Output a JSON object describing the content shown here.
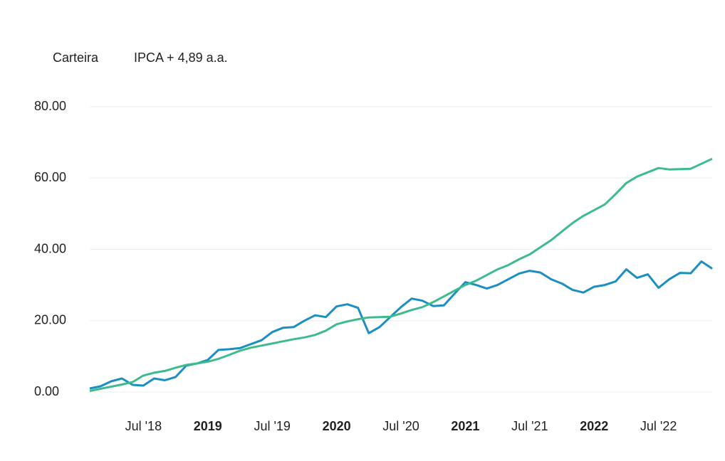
{
  "chart_data": {
    "type": "line",
    "x": [
      "2018-02",
      "2018-03",
      "2018-04",
      "2018-05",
      "2018-06",
      "2018-07",
      "2018-08",
      "2018-09",
      "2018-10",
      "2018-11",
      "2018-12",
      "2019-01",
      "2019-02",
      "2019-03",
      "2019-04",
      "2019-05",
      "2019-06",
      "2019-07",
      "2019-08",
      "2019-09",
      "2019-10",
      "2019-11",
      "2019-12",
      "2020-01",
      "2020-02",
      "2020-03",
      "2020-04",
      "2020-05",
      "2020-06",
      "2020-07",
      "2020-08",
      "2020-09",
      "2020-10",
      "2020-11",
      "2020-12",
      "2021-01",
      "2021-02",
      "2021-03",
      "2021-04",
      "2021-05",
      "2021-06",
      "2021-07",
      "2021-08",
      "2021-09",
      "2021-10",
      "2021-11",
      "2021-12",
      "2022-01",
      "2022-02",
      "2022-03",
      "2022-04",
      "2022-05",
      "2022-06",
      "2022-07",
      "2022-08",
      "2022-09",
      "2022-10",
      "2022-11",
      "2022-12"
    ],
    "series": [
      {
        "name": "Carteira",
        "color": "#1b8ec4",
        "values": [
          1.0,
          1.6,
          3.0,
          3.8,
          2.0,
          1.8,
          3.8,
          3.3,
          4.2,
          7.4,
          8.0,
          9.0,
          11.8,
          12.0,
          12.3,
          13.4,
          14.5,
          16.8,
          18.0,
          18.2,
          20.0,
          21.5,
          21.0,
          24.0,
          24.6,
          23.6,
          16.5,
          18.2,
          21.0,
          23.8,
          26.2,
          25.6,
          24.1,
          24.3,
          27.6,
          30.8,
          30.0,
          29.0,
          30.0,
          31.6,
          33.2,
          34.0,
          33.5,
          31.6,
          30.4,
          28.6,
          27.9,
          29.5,
          30.0,
          31.0,
          34.4,
          32.0,
          33.0,
          29.2,
          31.6,
          33.4,
          33.3,
          36.6,
          34.6
        ]
      },
      {
        "name": "IPCA + 4,89 a.a.",
        "color": "#3dbb8c",
        "values": [
          0.3,
          0.9,
          1.5,
          2.1,
          2.8,
          4.6,
          5.4,
          5.9,
          6.8,
          7.6,
          8.0,
          8.5,
          9.3,
          10.4,
          11.6,
          12.4,
          13.0,
          13.6,
          14.2,
          14.8,
          15.3,
          16.0,
          17.2,
          19.0,
          19.8,
          20.4,
          20.9,
          21.0,
          21.1,
          22.0,
          23.0,
          23.8,
          25.2,
          26.8,
          28.4,
          30.0,
          31.2,
          32.8,
          34.4,
          35.6,
          37.2,
          38.6,
          40.6,
          42.6,
          45.0,
          47.4,
          49.4,
          51.0,
          52.6,
          55.5,
          58.6,
          60.4,
          61.6,
          62.8,
          62.4,
          62.5,
          62.6,
          64.0,
          65.4
        ]
      }
    ],
    "ylim": [
      0,
      80
    ],
    "yticks": [
      {
        "value": 0,
        "label": "0.00"
      },
      {
        "value": 20,
        "label": "20.00"
      },
      {
        "value": 40,
        "label": "40.00"
      },
      {
        "value": 60,
        "label": "60.00"
      },
      {
        "value": 80,
        "label": "80.00"
      }
    ],
    "xticks": [
      {
        "value": "2018-07",
        "label": "Jul '18"
      },
      {
        "value": "2019-01",
        "label": "2019"
      },
      {
        "value": "2019-07",
        "label": "Jul '19"
      },
      {
        "value": "2020-01",
        "label": "2020"
      },
      {
        "value": "2020-07",
        "label": "Jul '20"
      },
      {
        "value": "2021-01",
        "label": "2021"
      },
      {
        "value": "2021-07",
        "label": "Jul '21"
      },
      {
        "value": "2022-01",
        "label": "2022"
      },
      {
        "value": "2022-07",
        "label": "Jul '22"
      }
    ],
    "grid": true
  }
}
